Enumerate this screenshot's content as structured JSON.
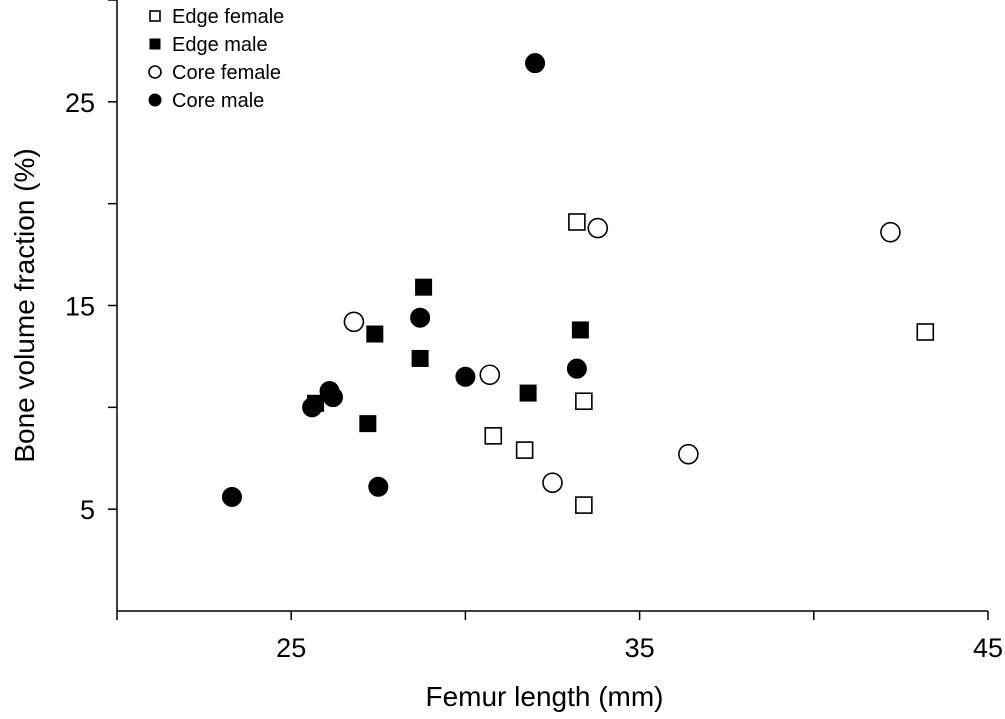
{
  "chart_data": {
    "type": "scatter",
    "title": "",
    "xlabel": "Femur length (mm)",
    "ylabel": "Bone volume fraction (%)",
    "xlim": [
      20,
      45
    ],
    "ylim": [
      0,
      30
    ],
    "xticks_major": [
      25,
      35,
      45
    ],
    "xticks_minor": [
      20,
      30,
      40
    ],
    "yticks_major": [
      5,
      15,
      25
    ],
    "yticks_minor": [
      10,
      20,
      30
    ],
    "grid": false,
    "legend_position": "top-left",
    "series": [
      {
        "name": "Edge female",
        "marker": "square",
        "filled": false,
        "points": [
          [
            33.2,
            19.1
          ],
          [
            43.2,
            13.7
          ],
          [
            33.4,
            10.3
          ],
          [
            30.8,
            8.6
          ],
          [
            31.7,
            7.9
          ],
          [
            33.4,
            5.2
          ]
        ]
      },
      {
        "name": "Edge male",
        "marker": "square",
        "filled": true,
        "points": [
          [
            28.8,
            15.9
          ],
          [
            27.4,
            13.6
          ],
          [
            33.3,
            13.8
          ],
          [
            28.7,
            12.4
          ],
          [
            31.8,
            10.7
          ],
          [
            25.7,
            10.2
          ],
          [
            27.2,
            9.2
          ]
        ]
      },
      {
        "name": "Core female",
        "marker": "circle",
        "filled": false,
        "points": [
          [
            33.8,
            18.8
          ],
          [
            42.2,
            18.6
          ],
          [
            26.8,
            14.2
          ],
          [
            30.7,
            11.6
          ],
          [
            36.4,
            7.7
          ],
          [
            32.5,
            6.3
          ]
        ]
      },
      {
        "name": "Core male",
        "marker": "circle",
        "filled": true,
        "points": [
          [
            32.0,
            26.9
          ],
          [
            28.7,
            14.4
          ],
          [
            33.2,
            11.9
          ],
          [
            30.0,
            11.5
          ],
          [
            26.1,
            10.8
          ],
          [
            26.2,
            10.5
          ],
          [
            25.6,
            10.0
          ],
          [
            27.5,
            6.1
          ],
          [
            23.3,
            5.6
          ]
        ]
      }
    ]
  }
}
